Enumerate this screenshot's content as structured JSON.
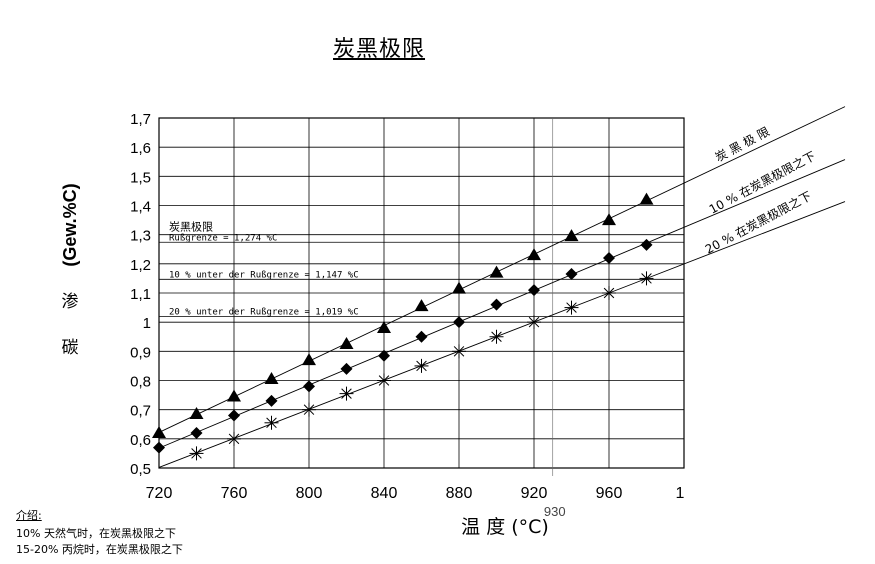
{
  "title": "炭黑极限",
  "chart_data": {
    "type": "scatter",
    "title": "炭黑极限",
    "xlabel": "温 度 (°C)",
    "ylabel": "(Gew.%C)",
    "ylabel_cn": [
      "渗",
      "碳"
    ],
    "xlim": [
      720,
      1000
    ],
    "ylim": [
      0.5,
      1.7
    ],
    "x_ticks": [
      720,
      760,
      800,
      840,
      880,
      920,
      960
    ],
    "x_tick_labels": [
      "720",
      "760",
      "800",
      "840",
      "880",
      "920",
      "960"
    ],
    "x_tick_last": "1",
    "x_extra_label": "930",
    "y_ticks": [
      0.5,
      0.6,
      0.7,
      0.8,
      0.9,
      1.0,
      1.1,
      1.2,
      1.3,
      1.4,
      1.5,
      1.6,
      1.7
    ],
    "y_tick_labels": [
      "0,5",
      "0,6",
      "0,7",
      "0,8",
      "0,9",
      "1",
      "1,1",
      "1,2",
      "1,3",
      "1,4",
      "1,5",
      "1,6",
      "1,7"
    ],
    "grid": true,
    "series": [
      {
        "name": "炭 黑 极 限",
        "marker": "triangle",
        "x": [
          720,
          740,
          760,
          780,
          800,
          820,
          840,
          860,
          880,
          900,
          920,
          940,
          960,
          980
        ],
        "y": [
          0.62,
          0.685,
          0.745,
          0.805,
          0.87,
          0.925,
          0.98,
          1.055,
          1.115,
          1.17,
          1.23,
          1.295,
          1.35,
          1.42
        ]
      },
      {
        "name": "10 % 在炭黑极限之下",
        "marker": "diamond",
        "x": [
          720,
          740,
          760,
          780,
          800,
          820,
          840,
          860,
          880,
          900,
          920,
          940,
          960,
          980
        ],
        "y": [
          0.57,
          0.62,
          0.68,
          0.73,
          0.78,
          0.84,
          0.885,
          0.95,
          1.0,
          1.06,
          1.11,
          1.165,
          1.22,
          1.265
        ]
      },
      {
        "name": "20 % 在炭黑极限之下",
        "marker": "asterisk",
        "x": [
          740,
          760,
          780,
          800,
          820,
          840,
          860,
          880,
          900,
          920,
          940,
          960,
          980
        ],
        "y": [
          0.55,
          0.6,
          0.655,
          0.7,
          0.755,
          0.8,
          0.85,
          0.9,
          0.95,
          1.0,
          1.05,
          1.1,
          1.15
        ]
      }
    ],
    "reference_lines": [
      {
        "label_cn": "炭黑极限",
        "label": "Rußgrenze = 1,274 %C",
        "y": 1.274
      },
      {
        "label": "10 % unter der Rußgrenze = 1,147 %C",
        "y": 1.147
      },
      {
        "label": "20 % unter der Rußgrenze = 1,019 %C",
        "y": 1.019
      }
    ]
  },
  "notes": {
    "heading": "介绍:",
    "lines": [
      "10% 天然气时，在炭黑极限之下",
      "15-20% 丙烷时，在炭黑极限之下"
    ]
  }
}
